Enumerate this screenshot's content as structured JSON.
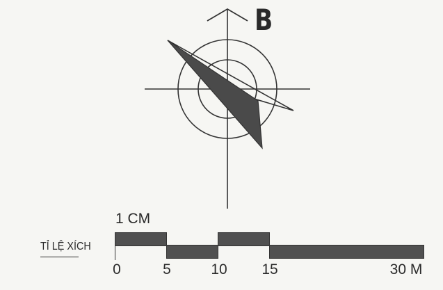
{
  "compass": {
    "north_label": "B"
  },
  "scale": {
    "unit_label": "1 CM",
    "title": "TỈ LỆ XÍCH",
    "ticks": [
      "0",
      "5",
      "10",
      "15",
      "30 M"
    ]
  },
  "colors": {
    "ink": "#2a2a2a",
    "fill": "#505050",
    "background": "#f6f6f3"
  }
}
